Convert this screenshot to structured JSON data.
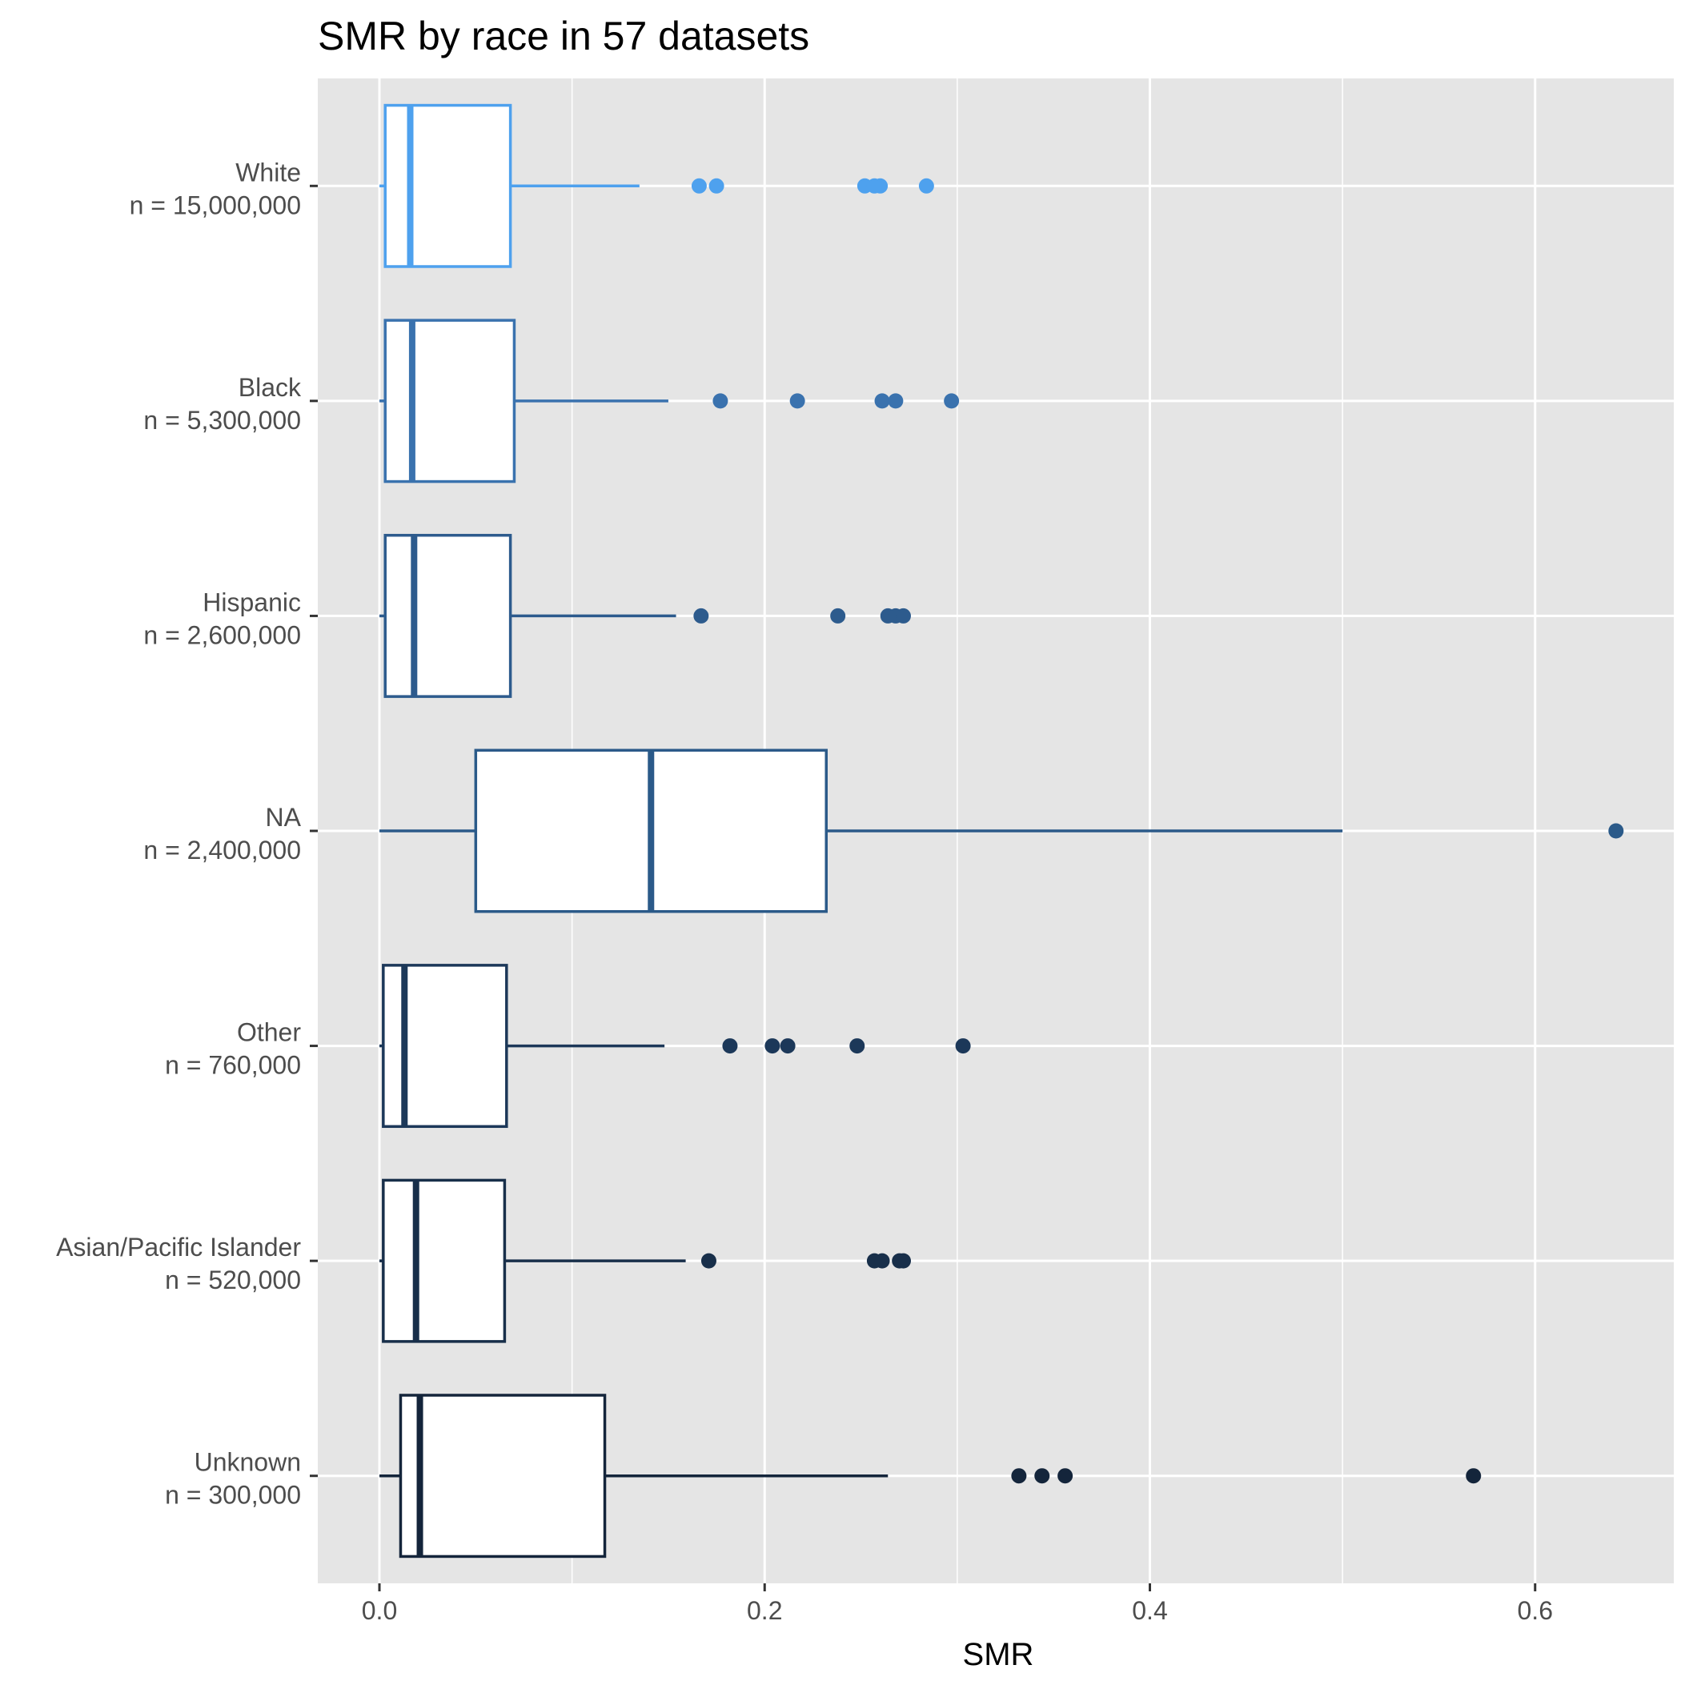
{
  "chart_data": {
    "type": "boxplot",
    "orientation": "horizontal",
    "title": "SMR by race in 57 datasets",
    "xlabel": "SMR",
    "ylabel": "",
    "xlim": [
      -0.032,
      0.672
    ],
    "x_ticks": [
      0.0,
      0.2,
      0.4,
      0.6
    ],
    "x_tick_labels": [
      "0.0",
      "0.2",
      "0.4",
      "0.6"
    ],
    "grid": true,
    "background": "#e5e5e5",
    "groups": [
      {
        "label": "White",
        "n_label": "n = 15,000,000",
        "color": "#4ea1ee",
        "min": 0.0,
        "q1": 0.003,
        "median": 0.016,
        "q3": 0.068,
        "max": 0.135,
        "outliers": [
          0.166,
          0.175,
          0.252,
          0.257,
          0.26,
          0.284
        ]
      },
      {
        "label": "Black",
        "n_label": "n = 5,300,000",
        "color": "#3a72ae",
        "min": 0.0,
        "q1": 0.003,
        "median": 0.017,
        "q3": 0.07,
        "max": 0.15,
        "outliers": [
          0.177,
          0.217,
          0.261,
          0.268,
          0.297
        ]
      },
      {
        "label": "Hispanic",
        "n_label": "n = 2,600,000",
        "color": "#2d5b8d",
        "min": 0.0,
        "q1": 0.003,
        "median": 0.018,
        "q3": 0.068,
        "max": 0.154,
        "outliers": [
          0.167,
          0.238,
          0.264,
          0.268,
          0.272
        ]
      },
      {
        "label": "NA",
        "n_label": "n = 2,400,000",
        "color": "#2b5a89",
        "min": 0.0,
        "q1": 0.05,
        "median": 0.141,
        "q3": 0.232,
        "max": 0.5,
        "outliers": [
          0.642
        ]
      },
      {
        "label": "Other",
        "n_label": "n = 760,000",
        "color": "#1c3859",
        "min": 0.0,
        "q1": 0.002,
        "median": 0.013,
        "q3": 0.066,
        "max": 0.148,
        "outliers": [
          0.182,
          0.204,
          0.212,
          0.248,
          0.303
        ]
      },
      {
        "label": "Asian/Pacific Islander",
        "n_label": "n = 520,000",
        "color": "#182f4a",
        "min": 0.0,
        "q1": 0.002,
        "median": 0.019,
        "q3": 0.065,
        "max": 0.159,
        "outliers": [
          0.171,
          0.257,
          0.261,
          0.27,
          0.272
        ]
      },
      {
        "label": "Unknown",
        "n_label": "n = 300,000",
        "color": "#14253b",
        "min": 0.0,
        "q1": 0.011,
        "median": 0.021,
        "q3": 0.117,
        "max": 0.264,
        "outliers": [
          0.332,
          0.344,
          0.356,
          0.568
        ]
      }
    ]
  }
}
